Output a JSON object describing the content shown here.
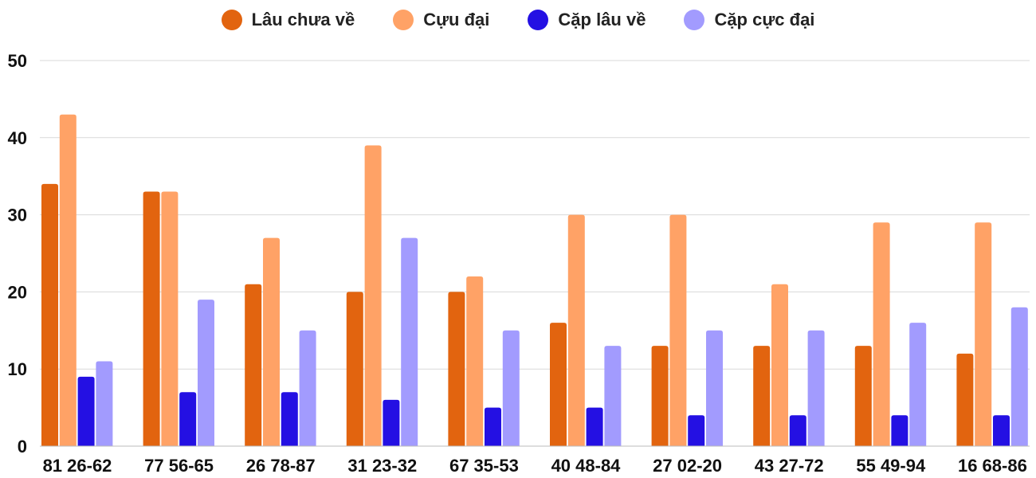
{
  "chart_data": {
    "type": "bar",
    "title": "",
    "xlabel": "",
    "ylabel": "",
    "ylim": [
      0,
      50
    ],
    "yticks": [
      0,
      10,
      20,
      30,
      40,
      50
    ],
    "grid": true,
    "legend_position": "top",
    "categories": [
      "81 26-62",
      "77 56-65",
      "26 78-87",
      "31 23-32",
      "67 35-53",
      "40 48-84",
      "27 02-20",
      "43 27-72",
      "55 49-94",
      "16 68-86"
    ],
    "series": [
      {
        "name": "Lâu chưa về",
        "color": "#E2640F",
        "values": [
          34,
          33,
          21,
          20,
          20,
          16,
          13,
          13,
          13,
          12
        ]
      },
      {
        "name": "Cựu đại",
        "color": "#FFA266",
        "values": [
          43,
          33,
          27,
          39,
          22,
          30,
          30,
          21,
          29,
          29
        ]
      },
      {
        "name": "Cặp lâu về",
        "color": "#2410E3",
        "values": [
          9,
          7,
          7,
          6,
          5,
          5,
          4,
          4,
          4,
          4
        ]
      },
      {
        "name": "Cặp cực đại",
        "color": "#A29BFE",
        "values": [
          11,
          19,
          15,
          27,
          15,
          13,
          15,
          15,
          16,
          18
        ]
      }
    ]
  }
}
